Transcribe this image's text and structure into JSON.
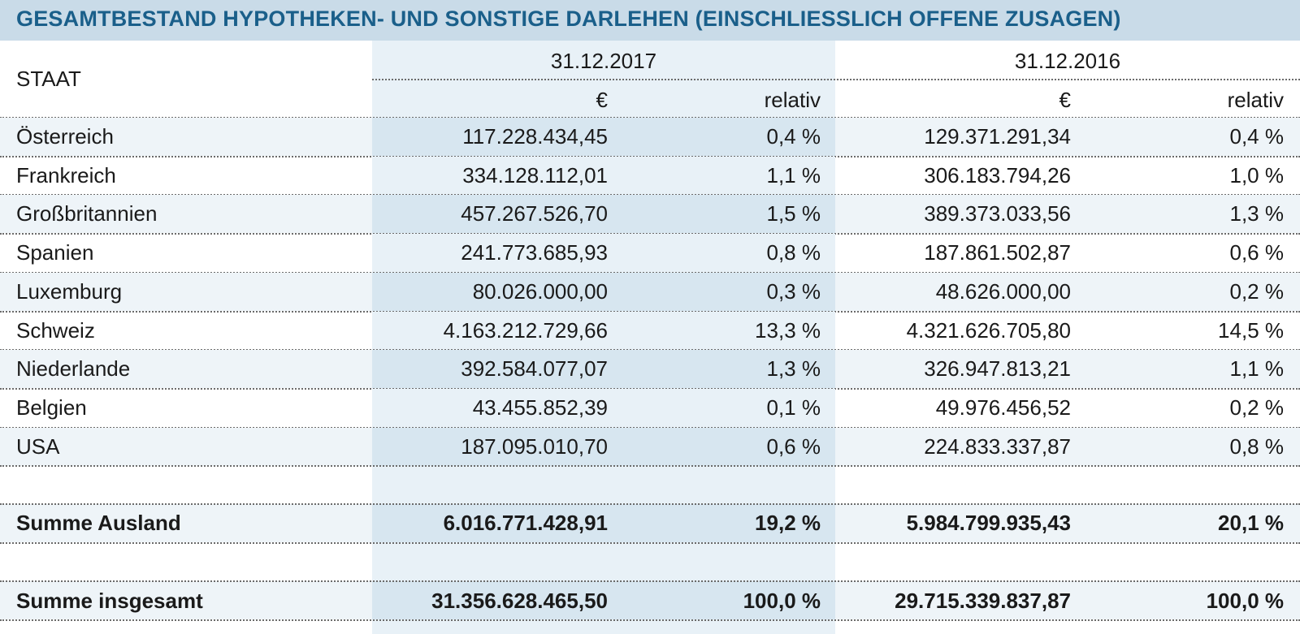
{
  "title": "GESAMTBESTAND HYPOTHEKEN- UND SONSTIGE DARLEHEN (EINSCHLIESSLICH OFFENE ZUSAGEN)",
  "header": {
    "staat": "STAAT",
    "year_a": "31.12.2017",
    "year_b": "31.12.2016",
    "eur_a": "€",
    "rel_a": "relativ",
    "eur_b": "€",
    "rel_b": "relativ"
  },
  "rows": [
    {
      "country": "Österreich",
      "eur_2017": "117.228.434,45",
      "rel_2017": "0,4 %",
      "eur_2016": "129.371.291,34",
      "rel_2016": "0,4 %"
    },
    {
      "country": "Frankreich",
      "eur_2017": "334.128.112,01",
      "rel_2017": "1,1 %",
      "eur_2016": "306.183.794,26",
      "rel_2016": "1,0 %"
    },
    {
      "country": "Großbritannien",
      "eur_2017": "457.267.526,70",
      "rel_2017": "1,5 %",
      "eur_2016": "389.373.033,56",
      "rel_2016": "1,3 %"
    },
    {
      "country": "Spanien",
      "eur_2017": "241.773.685,93",
      "rel_2017": "0,8 %",
      "eur_2016": "187.861.502,87",
      "rel_2016": "0,6 %"
    },
    {
      "country": "Luxemburg",
      "eur_2017": "80.026.000,00",
      "rel_2017": "0,3 %",
      "eur_2016": "48.626.000,00",
      "rel_2016": "0,2 %"
    },
    {
      "country": "Schweiz",
      "eur_2017": "4.163.212.729,66",
      "rel_2017": "13,3 %",
      "eur_2016": "4.321.626.705,80",
      "rel_2016": "14,5 %"
    },
    {
      "country": "Niederlande",
      "eur_2017": "392.584.077,07",
      "rel_2017": "1,3 %",
      "eur_2016": "326.947.813,21",
      "rel_2016": "1,1 %"
    },
    {
      "country": "Belgien",
      "eur_2017": "43.455.852,39",
      "rel_2017": "0,1 %",
      "eur_2016": "49.976.456,52",
      "rel_2016": "0,2 %"
    },
    {
      "country": "USA",
      "eur_2017": "187.095.010,70",
      "rel_2017": "0,6 %",
      "eur_2016": "224.833.337,87",
      "rel_2016": "0,8 %"
    }
  ],
  "sum_foreign": {
    "label": "Summe Ausland",
    "eur_2017": "6.016.771.428,91",
    "rel_2017": "19,2 %",
    "eur_2016": "5.984.799.935,43",
    "rel_2016": "20,1 %"
  },
  "sum_total": {
    "label": "Summe insgesamt",
    "eur_2017": "31.356.628.465,50",
    "rel_2017": "100,0 %",
    "eur_2016": "29.715.339.837,87",
    "rel_2016": "100,0 %"
  },
  "colors": {
    "title_bg": "#c9dbe8",
    "title_text": "#1a5f8a",
    "shade_col": "#e8f1f7",
    "row_alt": "#eef4f8"
  }
}
